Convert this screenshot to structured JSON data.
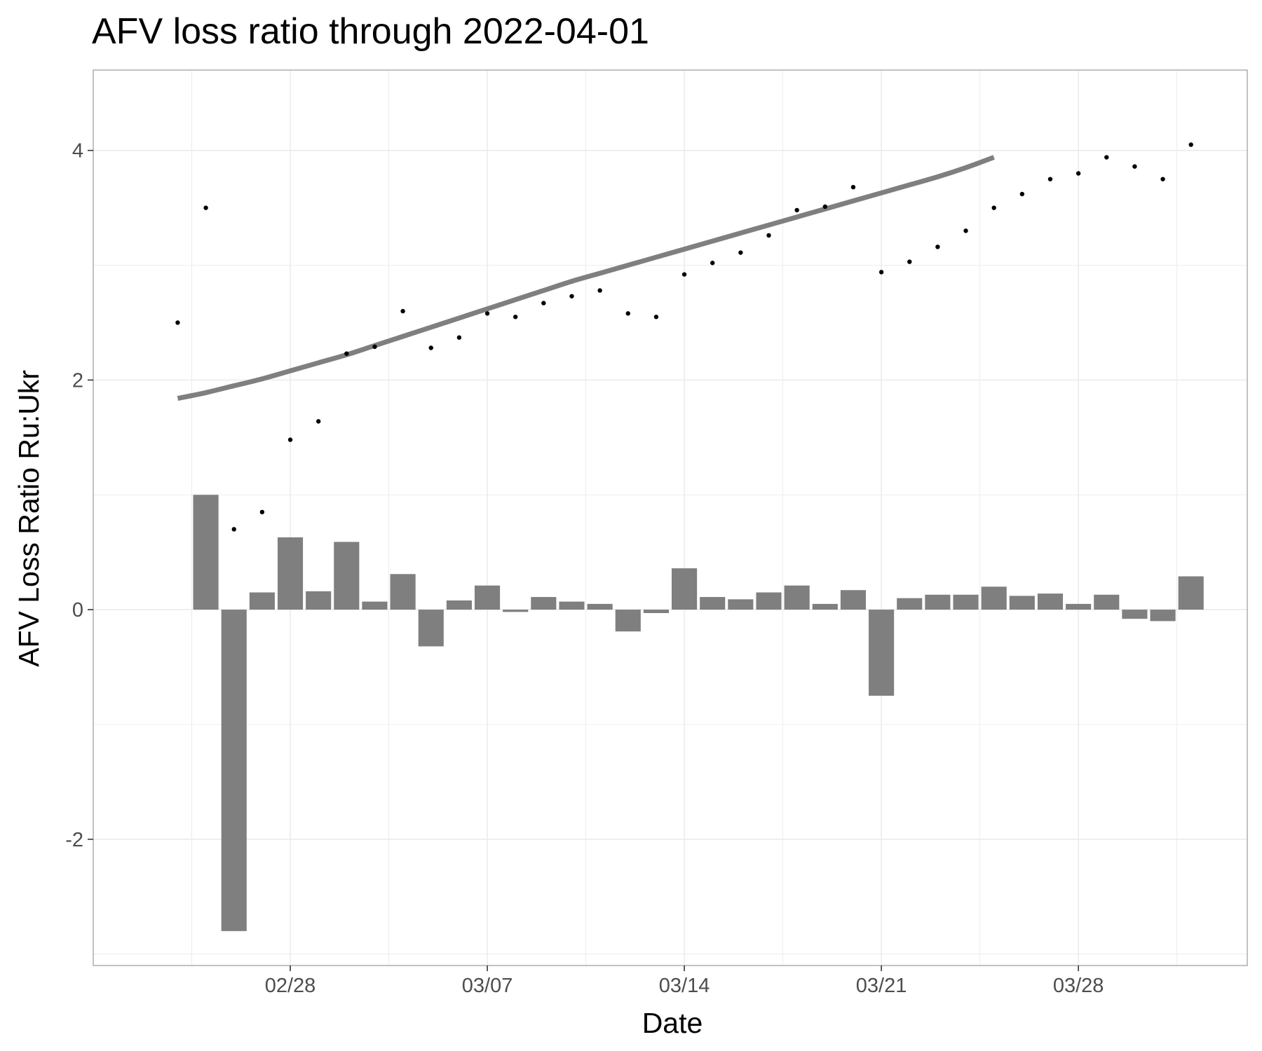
{
  "chart_data": {
    "type": "bar",
    "title": "AFV loss ratio through 2022-04-01",
    "xlabel": "Date",
    "ylabel": "AFV Loss Ratio Ru:Ukr",
    "x_date_start": "2022-02-24",
    "x_date_end": "2022-04-01",
    "xlim": [
      "2022-02-21",
      "2022-04-03"
    ],
    "ylim": [
      -3.1,
      4.7
    ],
    "x_ticks": [
      {
        "date": "2022-02-28",
        "label": "02/28"
      },
      {
        "date": "2022-03-07",
        "label": "03/07"
      },
      {
        "date": "2022-03-14",
        "label": "03/14"
      },
      {
        "date": "2022-03-21",
        "label": "03/21"
      },
      {
        "date": "2022-03-28",
        "label": "03/28"
      }
    ],
    "y_ticks": [
      {
        "value": -2,
        "label": "-2"
      },
      {
        "value": 0,
        "label": "0"
      },
      {
        "value": 2,
        "label": "2"
      },
      {
        "value": 4,
        "label": "4"
      }
    ],
    "y_minor_ticks": [
      -3,
      -1,
      1,
      3
    ],
    "grid": true,
    "series": [
      {
        "type": "point",
        "x_start": "2022-02-24",
        "values": [
          2.5,
          3.5,
          0.7,
          0.85,
          1.48,
          1.64,
          2.23,
          2.29,
          2.6,
          2.28,
          2.37,
          2.58,
          2.55,
          2.67,
          2.73,
          2.78,
          2.58,
          2.55,
          2.92,
          3.02,
          3.11,
          3.26,
          3.48,
          3.51,
          3.68,
          2.94,
          3.03,
          3.16,
          3.3,
          3.5,
          3.62,
          3.75,
          3.8,
          3.94,
          3.86,
          3.75,
          4.05
        ],
        "color": "#000000"
      },
      {
        "type": "line",
        "x_start": "2022-02-24",
        "values": [
          1.84,
          1.89,
          1.95,
          2.01,
          2.08,
          2.15,
          2.22,
          2.3,
          2.38,
          2.46,
          2.54,
          2.62,
          2.7,
          2.78,
          2.86,
          2.93,
          3.0,
          3.07,
          3.14,
          3.21,
          3.28,
          3.35,
          3.42,
          3.49,
          3.56,
          3.63,
          3.7,
          3.77,
          3.85,
          3.94
        ],
        "smooth": true,
        "color": "#7f7f7f"
      },
      {
        "type": "bar",
        "x_start": "2022-02-25",
        "values": [
          1.0,
          -2.8,
          0.15,
          0.63,
          0.16,
          0.59,
          0.07,
          0.31,
          -0.32,
          0.08,
          0.21,
          -0.02,
          0.11,
          0.07,
          0.05,
          -0.19,
          -0.03,
          0.36,
          0.11,
          0.09,
          0.15,
          0.21,
          0.05,
          0.17,
          -0.75,
          0.1,
          0.13,
          0.13,
          0.2,
          0.12,
          0.14,
          0.05,
          0.13,
          -0.08,
          -0.1,
          0.29
        ],
        "color": "#7f7f7f"
      }
    ]
  }
}
